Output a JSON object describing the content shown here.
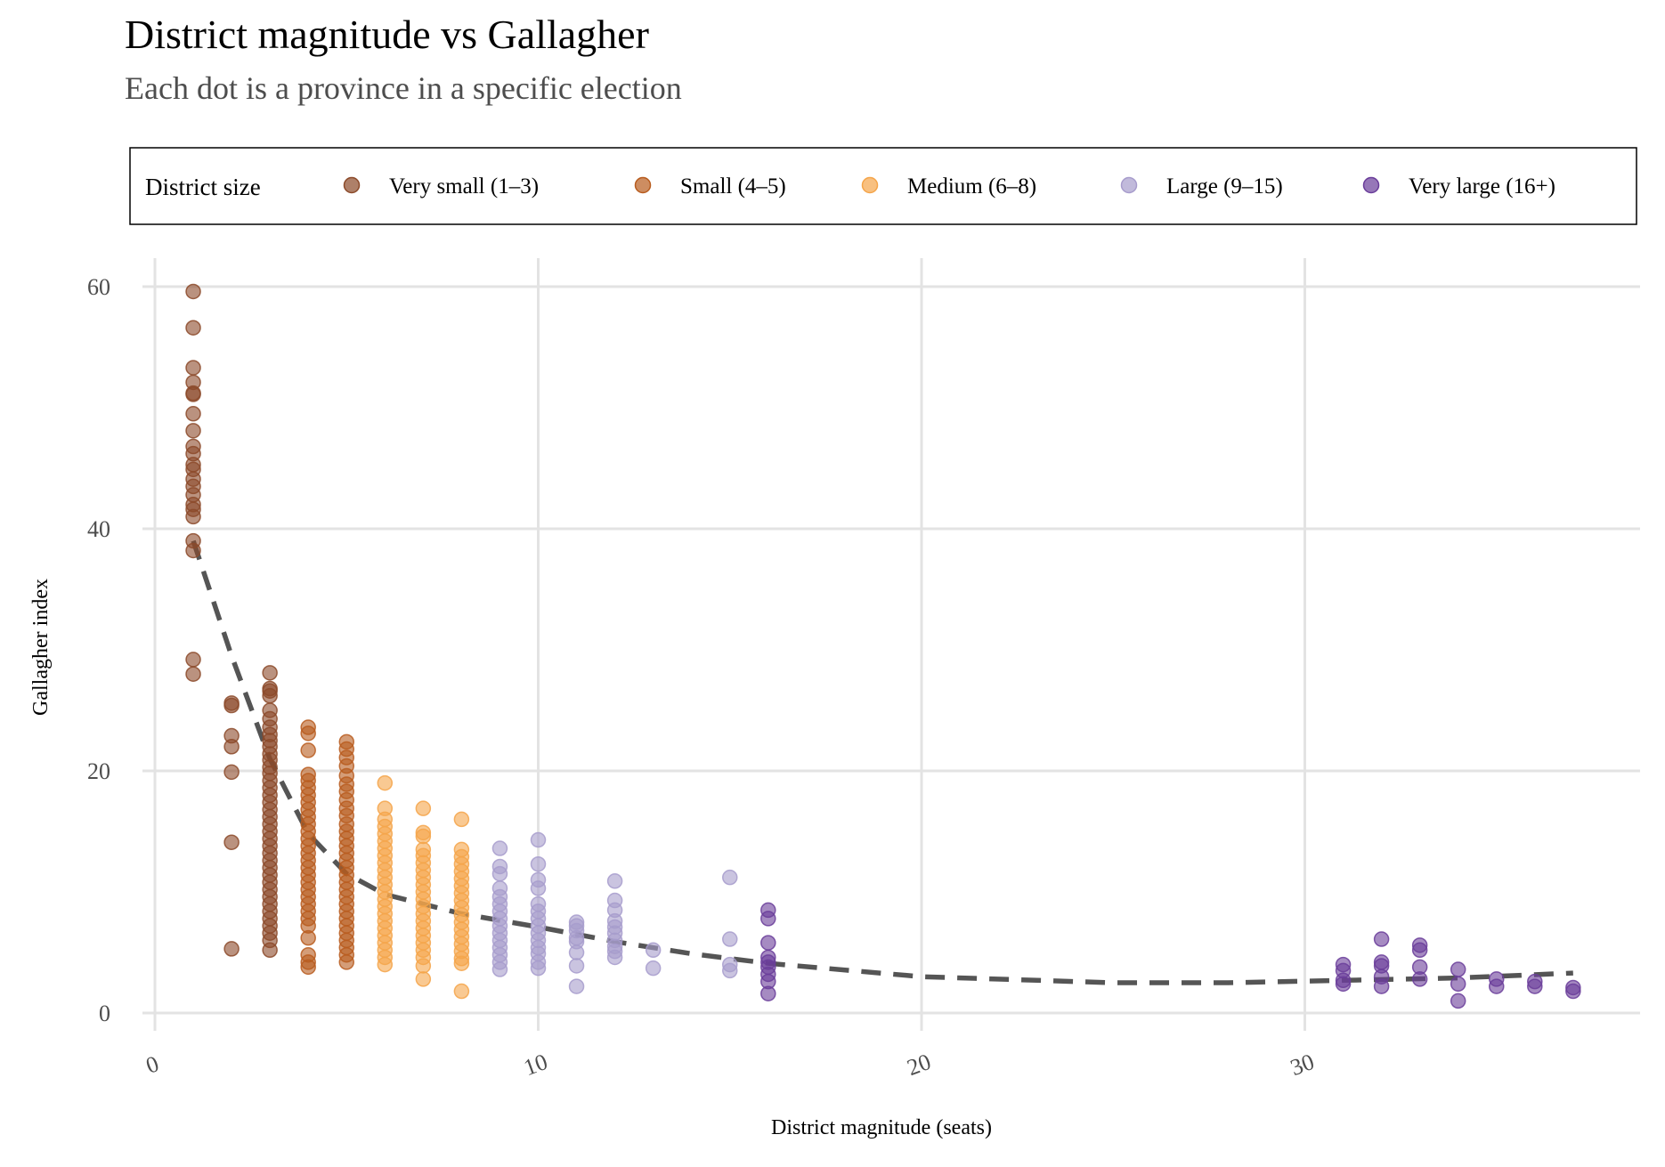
{
  "chart_data": {
    "type": "scatter",
    "title": "District magnitude vs Gallagher",
    "subtitle": "Each dot is a province in a specific election",
    "xlabel": "District magnitude (seats)",
    "ylabel": "Gallagher index",
    "xlim": [
      -0.5,
      38.5
    ],
    "ylim": [
      -2.5,
      63
    ],
    "xticks": [
      0,
      10,
      20,
      30
    ],
    "yticks": [
      0,
      20,
      40,
      60
    ],
    "grid": true,
    "legend": {
      "title": "District size",
      "position": "top",
      "entries": [
        {
          "label": "Very small (1–3)",
          "color": "#8c4a2a"
        },
        {
          "label": "Small (4–5)",
          "color": "#b85c1e"
        },
        {
          "label": "Medium (6–8)",
          "color": "#f5a54a"
        },
        {
          "label": "Large (9–15)",
          "color": "#a79ccc"
        },
        {
          "label": "Very large (16+)",
          "color": "#6a3d9a"
        }
      ]
    },
    "series": [
      {
        "name": "Very small (1–3)",
        "color": "#8c4a2a",
        "points": [
          [
            1,
            59.6
          ],
          [
            1,
            56.6
          ],
          [
            1,
            53.3
          ],
          [
            1,
            52.1
          ],
          [
            1,
            51.2
          ],
          [
            1,
            51.1
          ],
          [
            1,
            49.5
          ],
          [
            1,
            48.1
          ],
          [
            1,
            46.8
          ],
          [
            1,
            46.2
          ],
          [
            1,
            45.3
          ],
          [
            1,
            44.9
          ],
          [
            1,
            44.1
          ],
          [
            1,
            43.5
          ],
          [
            1,
            42.8
          ],
          [
            1,
            42.0
          ],
          [
            1,
            41.6
          ],
          [
            1,
            41.0
          ],
          [
            1,
            39.0
          ],
          [
            1,
            38.2
          ],
          [
            1,
            29.2
          ],
          [
            1,
            28.0
          ],
          [
            2,
            25.6
          ],
          [
            2,
            25.4
          ],
          [
            2,
            22.9
          ],
          [
            2,
            22.0
          ],
          [
            2,
            19.9
          ],
          [
            2,
            14.1
          ],
          [
            2,
            5.3
          ],
          [
            3,
            28.1
          ],
          [
            3,
            26.8
          ],
          [
            3,
            26.6
          ],
          [
            3,
            26.2
          ],
          [
            3,
            25.0
          ],
          [
            3,
            24.3
          ],
          [
            3,
            23.6
          ],
          [
            3,
            23.0
          ],
          [
            3,
            22.5
          ],
          [
            3,
            22.0
          ],
          [
            3,
            21.4
          ],
          [
            3,
            20.9
          ],
          [
            3,
            20.3
          ],
          [
            3,
            19.8
          ],
          [
            3,
            19.2
          ],
          [
            3,
            18.6
          ],
          [
            3,
            18.0
          ],
          [
            3,
            17.4
          ],
          [
            3,
            16.8
          ],
          [
            3,
            16.2
          ],
          [
            3,
            15.6
          ],
          [
            3,
            15.0
          ],
          [
            3,
            14.4
          ],
          [
            3,
            13.8
          ],
          [
            3,
            13.2
          ],
          [
            3,
            12.6
          ],
          [
            3,
            12.0
          ],
          [
            3,
            11.4
          ],
          [
            3,
            10.8
          ],
          [
            3,
            10.2
          ],
          [
            3,
            9.6
          ],
          [
            3,
            9.0
          ],
          [
            3,
            8.4
          ],
          [
            3,
            7.8
          ],
          [
            3,
            7.2
          ],
          [
            3,
            6.6
          ],
          [
            3,
            6.0
          ],
          [
            3,
            5.2
          ]
        ]
      },
      {
        "name": "Small (4–5)",
        "color": "#b85c1e",
        "points": [
          [
            4,
            23.6
          ],
          [
            4,
            23.1
          ],
          [
            4,
            21.7
          ],
          [
            4,
            19.7
          ],
          [
            4,
            19.2
          ],
          [
            4,
            18.6
          ],
          [
            4,
            18.0
          ],
          [
            4,
            17.4
          ],
          [
            4,
            16.8
          ],
          [
            4,
            16.2
          ],
          [
            4,
            15.6
          ],
          [
            4,
            15.0
          ],
          [
            4,
            14.4
          ],
          [
            4,
            13.8
          ],
          [
            4,
            13.2
          ],
          [
            4,
            12.6
          ],
          [
            4,
            12.0
          ],
          [
            4,
            11.4
          ],
          [
            4,
            10.8
          ],
          [
            4,
            10.2
          ],
          [
            4,
            9.6
          ],
          [
            4,
            9.0
          ],
          [
            4,
            8.4
          ],
          [
            4,
            7.8
          ],
          [
            4,
            7.2
          ],
          [
            4,
            6.2
          ],
          [
            4,
            4.8
          ],
          [
            4,
            4.2
          ],
          [
            4,
            3.8
          ],
          [
            5,
            22.4
          ],
          [
            5,
            21.8
          ],
          [
            5,
            21.1
          ],
          [
            5,
            20.4
          ],
          [
            5,
            19.6
          ],
          [
            5,
            18.9
          ],
          [
            5,
            18.3
          ],
          [
            5,
            17.6
          ],
          [
            5,
            16.9
          ],
          [
            5,
            16.3
          ],
          [
            5,
            15.6
          ],
          [
            5,
            15.0
          ],
          [
            5,
            14.4
          ],
          [
            5,
            13.8
          ],
          [
            5,
            13.2
          ],
          [
            5,
            12.6
          ],
          [
            5,
            12.0
          ],
          [
            5,
            11.4
          ],
          [
            5,
            10.8
          ],
          [
            5,
            10.2
          ],
          [
            5,
            9.6
          ],
          [
            5,
            9.0
          ],
          [
            5,
            8.4
          ],
          [
            5,
            7.8
          ],
          [
            5,
            7.2
          ],
          [
            5,
            6.6
          ],
          [
            5,
            6.0
          ],
          [
            5,
            5.4
          ],
          [
            5,
            4.8
          ],
          [
            5,
            4.2
          ]
        ]
      },
      {
        "name": "Medium (6–8)",
        "color": "#f5a54a",
        "points": [
          [
            6,
            19.0
          ],
          [
            6,
            16.9
          ],
          [
            6,
            16.0
          ],
          [
            6,
            15.4
          ],
          [
            6,
            14.8
          ],
          [
            6,
            14.2
          ],
          [
            6,
            13.6
          ],
          [
            6,
            13.0
          ],
          [
            6,
            12.4
          ],
          [
            6,
            11.8
          ],
          [
            6,
            11.2
          ],
          [
            6,
            10.6
          ],
          [
            6,
            10.0
          ],
          [
            6,
            9.4
          ],
          [
            6,
            8.8
          ],
          [
            6,
            8.2
          ],
          [
            6,
            7.6
          ],
          [
            6,
            7.0
          ],
          [
            6,
            6.4
          ],
          [
            6,
            5.8
          ],
          [
            6,
            5.2
          ],
          [
            6,
            4.6
          ],
          [
            6,
            4.0
          ],
          [
            7,
            16.9
          ],
          [
            7,
            14.9
          ],
          [
            7,
            14.6
          ],
          [
            7,
            13.5
          ],
          [
            7,
            13.0
          ],
          [
            7,
            12.4
          ],
          [
            7,
            11.8
          ],
          [
            7,
            11.2
          ],
          [
            7,
            10.6
          ],
          [
            7,
            10.0
          ],
          [
            7,
            9.4
          ],
          [
            7,
            8.8
          ],
          [
            7,
            8.2
          ],
          [
            7,
            7.6
          ],
          [
            7,
            7.0
          ],
          [
            7,
            6.4
          ],
          [
            7,
            5.8
          ],
          [
            7,
            5.2
          ],
          [
            7,
            4.6
          ],
          [
            7,
            3.9
          ],
          [
            7,
            2.8
          ],
          [
            8,
            16.0
          ],
          [
            8,
            13.5
          ],
          [
            8,
            12.9
          ],
          [
            8,
            12.3
          ],
          [
            8,
            11.7
          ],
          [
            8,
            11.1
          ],
          [
            8,
            10.5
          ],
          [
            8,
            9.9
          ],
          [
            8,
            9.3
          ],
          [
            8,
            8.7
          ],
          [
            8,
            8.1
          ],
          [
            8,
            7.5
          ],
          [
            8,
            6.9
          ],
          [
            8,
            6.3
          ],
          [
            8,
            5.7
          ],
          [
            8,
            5.1
          ],
          [
            8,
            4.5
          ],
          [
            8,
            4.1
          ],
          [
            8,
            1.8
          ]
        ]
      },
      {
        "name": "Large (9–15)",
        "color": "#a79ccc",
        "points": [
          [
            9,
            13.6
          ],
          [
            9,
            12.1
          ],
          [
            9,
            11.5
          ],
          [
            9,
            10.3
          ],
          [
            9,
            9.6
          ],
          [
            9,
            9.0
          ],
          [
            9,
            8.4
          ],
          [
            9,
            7.8
          ],
          [
            9,
            7.2
          ],
          [
            9,
            6.6
          ],
          [
            9,
            6.0
          ],
          [
            9,
            5.4
          ],
          [
            9,
            4.8
          ],
          [
            9,
            4.2
          ],
          [
            9,
            3.6
          ],
          [
            10,
            14.3
          ],
          [
            10,
            12.3
          ],
          [
            10,
            11.0
          ],
          [
            10,
            10.3
          ],
          [
            10,
            9.0
          ],
          [
            10,
            8.4
          ],
          [
            10,
            7.8
          ],
          [
            10,
            7.2
          ],
          [
            10,
            6.6
          ],
          [
            10,
            6.0
          ],
          [
            10,
            5.4
          ],
          [
            10,
            4.9
          ],
          [
            10,
            4.2
          ],
          [
            10,
            3.7
          ],
          [
            11,
            7.5
          ],
          [
            11,
            7.2
          ],
          [
            11,
            6.8
          ],
          [
            11,
            6.2
          ],
          [
            11,
            5.9
          ],
          [
            11,
            5.0
          ],
          [
            11,
            3.9
          ],
          [
            11,
            2.2
          ],
          [
            12,
            10.9
          ],
          [
            12,
            9.3
          ],
          [
            12,
            8.5
          ],
          [
            12,
            7.6
          ],
          [
            12,
            7.1
          ],
          [
            12,
            6.6
          ],
          [
            12,
            6.0
          ],
          [
            12,
            5.5
          ],
          [
            12,
            5.1
          ],
          [
            12,
            4.6
          ],
          [
            13,
            5.2
          ],
          [
            13,
            3.7
          ],
          [
            15,
            11.2
          ],
          [
            15,
            6.1
          ],
          [
            15,
            4.0
          ],
          [
            15,
            3.5
          ]
        ]
      },
      {
        "name": "Very large (16+)",
        "color": "#6a3d9a",
        "points": [
          [
            16,
            8.5
          ],
          [
            16,
            7.8
          ],
          [
            16,
            5.8
          ],
          [
            16,
            4.6
          ],
          [
            16,
            4.2
          ],
          [
            16,
            3.8
          ],
          [
            16,
            3.2
          ],
          [
            16,
            2.6
          ],
          [
            16,
            1.6
          ],
          [
            31,
            4.0
          ],
          [
            31,
            3.5
          ],
          [
            31,
            2.7
          ],
          [
            31,
            2.4
          ],
          [
            32,
            6.1
          ],
          [
            32,
            4.2
          ],
          [
            32,
            3.9
          ],
          [
            32,
            3.0
          ],
          [
            32,
            2.2
          ],
          [
            33,
            5.6
          ],
          [
            33,
            5.2
          ],
          [
            33,
            3.8
          ],
          [
            33,
            2.8
          ],
          [
            34,
            3.6
          ],
          [
            34,
            2.4
          ],
          [
            34,
            1.0
          ],
          [
            35,
            2.8
          ],
          [
            35,
            2.2
          ],
          [
            36,
            2.6
          ],
          [
            36,
            2.2
          ],
          [
            37,
            2.1
          ],
          [
            37,
            1.8
          ]
        ]
      }
    ],
    "trend": {
      "style": "dashed",
      "color": "#555555",
      "points": [
        [
          1,
          39.0
        ],
        [
          2,
          29.5
        ],
        [
          3,
          21.0
        ],
        [
          4,
          14.8
        ],
        [
          5,
          11.5
        ],
        [
          6,
          9.8
        ],
        [
          8,
          8.2
        ],
        [
          10,
          7.1
        ],
        [
          12,
          5.9
        ],
        [
          14,
          4.9
        ],
        [
          16,
          4.1
        ],
        [
          20,
          3.0
        ],
        [
          25,
          2.5
        ],
        [
          28,
          2.5
        ],
        [
          31,
          2.7
        ],
        [
          34,
          2.9
        ],
        [
          37,
          3.3
        ]
      ]
    }
  }
}
